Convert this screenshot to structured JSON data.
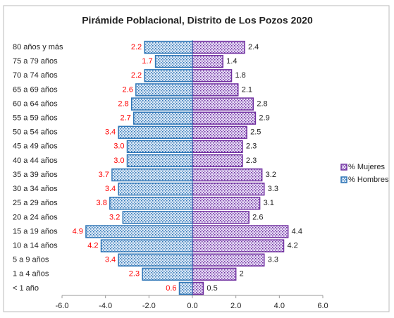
{
  "chart_data": {
    "type": "pyramid",
    "title": "Pirámide Poblacional, Distrito de Los Pozos 2020",
    "categories": [
      "80 años y más",
      "75 a 79 años",
      "70 a 74 años",
      "65 a 69 años",
      "60 a 64 años",
      "55 a 59 años",
      "50 a 54 años",
      "45 a 49 años",
      "40 a 44 años",
      "35 a 39 años",
      "30 a 34 años",
      "25 a 29 años",
      "20 a 24 años",
      "15 a 19 años",
      "10 a 14 años",
      "5 a 9 años",
      "1 a 4 años",
      "< 1 año"
    ],
    "series": [
      {
        "name": "% Hombres",
        "color": "#2e75b6",
        "label_color": "#ff0000",
        "values": [
          -2.2,
          -1.7,
          -2.2,
          -2.6,
          -2.8,
          -2.7,
          -3.4,
          -3.0,
          -3.0,
          -3.7,
          -3.4,
          -3.8,
          -3.2,
          -4.9,
          -4.2,
          -3.4,
          -2.3,
          -0.6
        ],
        "value_labels": [
          "2.2",
          "1.7",
          "2.2",
          "2.6",
          "2.8",
          "2.7",
          "3.4",
          "3.0",
          "3.0",
          "3.7",
          "3.4",
          "3.8",
          "3.2",
          "4.9",
          "4.2",
          "3.4",
          "2.3",
          "0.6"
        ]
      },
      {
        "name": "% Mujeres",
        "color": "#7030a0",
        "label_color": "#222222",
        "values": [
          2.4,
          1.4,
          1.8,
          2.1,
          2.8,
          2.9,
          2.5,
          2.3,
          2.3,
          3.2,
          3.3,
          3.1,
          2.6,
          4.4,
          4.2,
          3.3,
          2.0,
          0.5
        ]
      }
    ],
    "xlim": [
      -6,
      6
    ],
    "xticks": [
      {
        "value": -6,
        "label": "-6.0"
      },
      {
        "value": -4,
        "label": "-4.0"
      },
      {
        "value": -2,
        "label": "-2.0"
      },
      {
        "value": 0,
        "label": "0.0"
      },
      {
        "value": 2,
        "label": "2.0"
      },
      {
        "value": 4,
        "label": "4.0"
      },
      {
        "value": 6,
        "label": "6.0"
      }
    ],
    "legend": "right"
  }
}
